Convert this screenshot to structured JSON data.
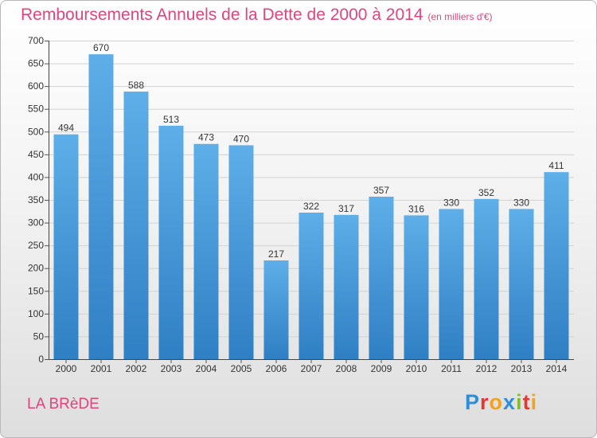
{
  "title": "Remboursements Annuels de la Dette de 2000 à 2014",
  "subtitle": "(en milliers d'€)",
  "city": "LA BRèDE",
  "logo_text": "Proxiti",
  "colors": {
    "accent": "#e0457b",
    "bar_top": "#5eaee8",
    "bar_bottom": "#2f7fc4",
    "grid": "#d2d2d2"
  },
  "chart_data": {
    "type": "bar",
    "title": "Remboursements Annuels de la Dette de 2000 à 2014",
    "subtitle": "(en milliers d'€)",
    "xlabel": "",
    "ylabel": "",
    "ylim": [
      0,
      700
    ],
    "yticks": [
      0,
      50,
      100,
      150,
      200,
      250,
      300,
      350,
      400,
      450,
      500,
      550,
      600,
      650,
      700
    ],
    "grid": true,
    "categories": [
      "2000",
      "2001",
      "2002",
      "2003",
      "2004",
      "2005",
      "2006",
      "2007",
      "2008",
      "2009",
      "2010",
      "2011",
      "2012",
      "2013",
      "2014"
    ],
    "values": [
      494,
      670,
      588,
      513,
      473,
      470,
      217,
      322,
      317,
      357,
      316,
      330,
      352,
      330,
      411
    ]
  }
}
